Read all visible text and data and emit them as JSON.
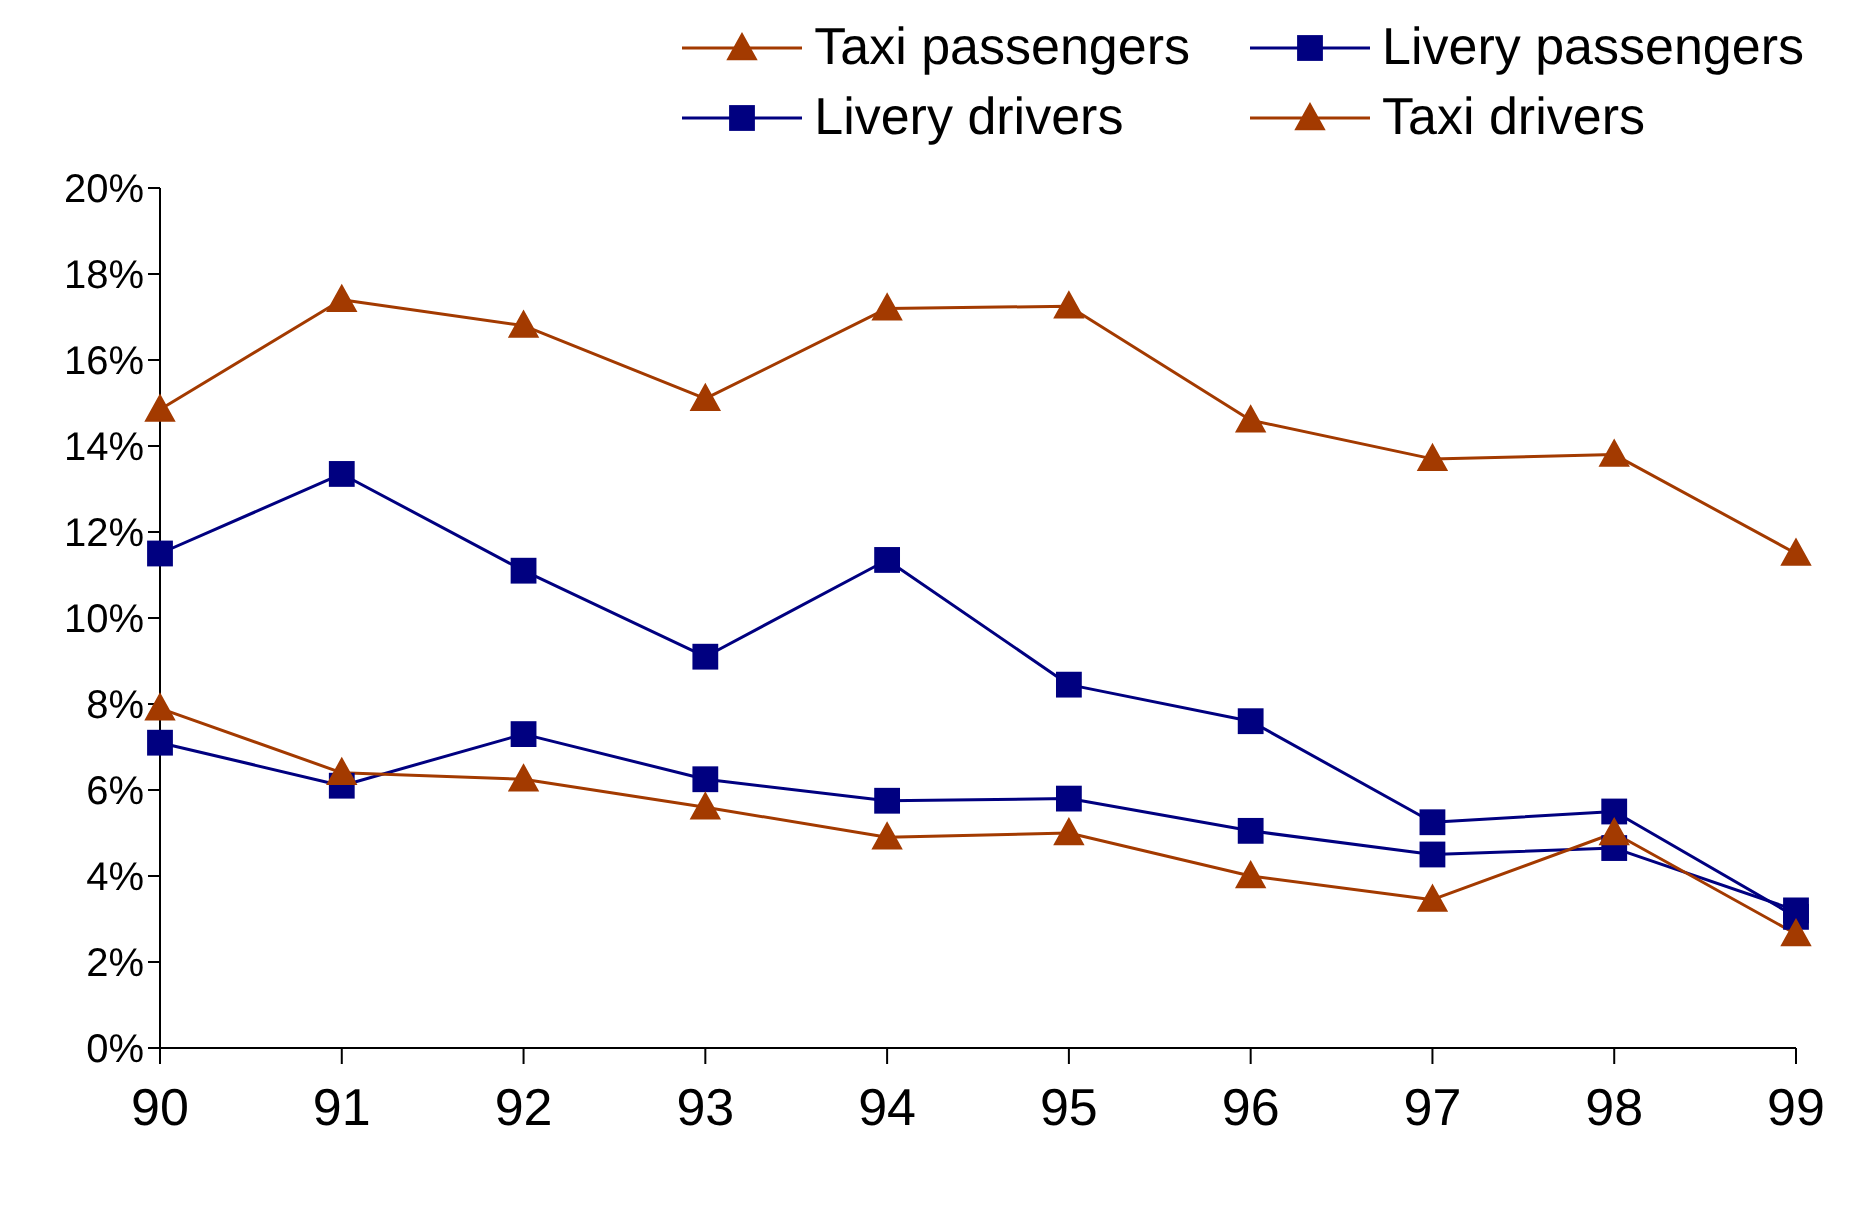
{
  "chart_data": {
    "type": "line",
    "x": [
      90,
      91,
      92,
      93,
      94,
      95,
      96,
      97,
      98,
      99
    ],
    "xlim": [
      90,
      99
    ],
    "xticks": [
      90,
      91,
      92,
      93,
      94,
      95,
      96,
      97,
      98,
      99
    ],
    "ylim": [
      0,
      20
    ],
    "yticks": [
      {
        "value": 0,
        "label": "0%"
      },
      {
        "value": 2,
        "label": "2%"
      },
      {
        "value": 4,
        "label": "4%"
      },
      {
        "value": 6,
        "label": "6%"
      },
      {
        "value": 8,
        "label": "8%"
      },
      {
        "value": 10,
        "label": "10%"
      },
      {
        "value": 12,
        "label": "12%"
      },
      {
        "value": 14,
        "label": "14%"
      },
      {
        "value": 16,
        "label": "16%"
      },
      {
        "value": 18,
        "label": "18%"
      },
      {
        "value": 20,
        "label": "20%"
      }
    ],
    "grid": false,
    "legend": "top right",
    "line_style": "solid",
    "series": [
      {
        "name": "Taxi passengers",
        "color": "#a33a00",
        "marker": "triangle",
        "values": [
          14.85,
          17.4,
          16.8,
          15.1,
          17.2,
          17.25,
          14.6,
          13.7,
          13.8,
          11.5
        ]
      },
      {
        "name": "Livery passengers",
        "color": "#000080",
        "marker": "square",
        "values": [
          11.5,
          13.35,
          11.1,
          9.1,
          11.35,
          8.45,
          7.6,
          5.25,
          5.5,
          3.05
        ]
      },
      {
        "name": "Livery drivers",
        "color": "#000080",
        "marker": "square",
        "values": [
          7.1,
          6.1,
          7.3,
          6.25,
          5.75,
          5.8,
          5.05,
          4.5,
          4.65,
          3.2
        ]
      },
      {
        "name": "Taxi drivers",
        "color": "#a33a00",
        "marker": "triangle",
        "values": [
          7.9,
          6.4,
          6.25,
          5.6,
          4.9,
          5.0,
          4.0,
          3.45,
          5.0,
          2.65
        ]
      }
    ]
  }
}
